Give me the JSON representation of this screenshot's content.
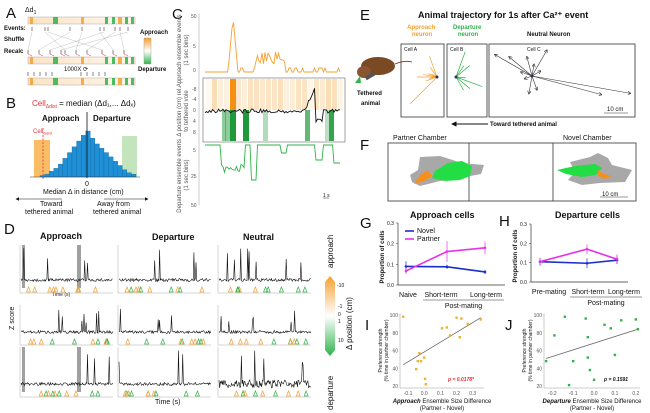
{
  "colors": {
    "approach": "#f5a030",
    "departure": "#2fb34a",
    "novel": "#1a2fcc",
    "partner": "#e632e6",
    "red": "#e8303a",
    "gray": "#a0a0a0"
  },
  "panelA": {
    "label": "A",
    "delta": "Δd",
    "delta_sub": "1",
    "events": "Events:",
    "shuffle": "Shuffle",
    "recalc": "Recalc",
    "iter": "1000X ⟳",
    "legend_top": "Approach",
    "legend_bottom": "Departure"
  },
  "panelB": {
    "label": "B",
    "formula_cell": "Cell",
    "formula_sub": "Δdist",
    "formula_rest": " = median (Δd₁,... Δdₓ)",
    "approach": "Approach",
    "departure": "Departure",
    "cell": "Cell",
    "cell_sub": "Δdist",
    "zero": "0",
    "xlabel": "Median Δ in distance (cm)",
    "toward": "Toward",
    "toward2": "tethered animal",
    "away": "Away from",
    "away2": "tethered animal"
  },
  "panelC": {
    "label": "C",
    "ylab_top": "Approach ensemble events (1 sec bins)",
    "ylab_mid": "Δ position (cm) rel. to tethered vole",
    "ylab_bot": "Departure ensemble events (1 sec bins)",
    "ticks_top": [
      "50",
      "5",
      "0"
    ],
    "ticks_bot": [
      "5",
      "25",
      "50"
    ],
    "ticks_mid": [
      "-8",
      "-4",
      "0",
      "4",
      "8"
    ],
    "scale": "1 s"
  },
  "panelD": {
    "label": "D",
    "col_titles": [
      "Approach",
      "Departure",
      "Neutral"
    ],
    "ylabel": "Z score",
    "xlabel": "Time (s)",
    "xlabel_small": "Time (s)",
    "cbar_top": "approach",
    "cbar_bottom": "departure",
    "cbar_label": "Δ position (cm)",
    "cbar_ticks": [
      "-10",
      "-1",
      "0",
      "1",
      "10"
    ]
  },
  "panelE": {
    "label": "E",
    "title": "Animal trajectory for 1s after Ca²⁺ event",
    "approach_title": "Approach neuron",
    "departure_title": "Departure neuron",
    "neutral_title": "Neutral Neuron",
    "cellA": "Cell A",
    "cellB": "Cell B",
    "cellC": "Cell C",
    "scale": "10 cm",
    "arrow_label": "Toward tethered animal",
    "tethered": "Tethered",
    "animal": "animal"
  },
  "panelF": {
    "label": "F",
    "partner": "Partner Chamber",
    "novel": "Novel Chamber",
    "scale": "10 cm"
  },
  "panelG": {
    "label": "G",
    "title": "Approach cells"
  },
  "panelH": {
    "label": "H",
    "title": "Departure cells"
  },
  "panelI": {
    "label": "I",
    "p": "p = 0.0178*"
  },
  "panelJ": {
    "label": "J",
    "p": "p = 0.1591"
  },
  "chart_data": [
    {
      "id": "B",
      "type": "bar",
      "title": "Histogram of median Δ in distance",
      "xlabel": "Median Δ in distance (cm)",
      "values": [
        1,
        2,
        4,
        6,
        9,
        13,
        17,
        21,
        25,
        29,
        32,
        27,
        23,
        20,
        17,
        14,
        11,
        8,
        5,
        3,
        2
      ]
    },
    {
      "id": "G",
      "type": "line",
      "title": "Approach cells",
      "ylabel": "Proportion of cells",
      "categories": [
        "Naive",
        "Short-term",
        "Long-term"
      ],
      "group_label": "Post-mating",
      "ylim": [
        0,
        0.3
      ],
      "yticks": [
        "0.0",
        "0.1",
        "0.2",
        "0.3"
      ],
      "series": [
        {
          "name": "Novel",
          "values": [
            0.09,
            0.088,
            0.063
          ],
          "err": [
            0.025,
            0.01,
            0.01
          ]
        },
        {
          "name": "Partner",
          "values": [
            0.068,
            0.162,
            0.18
          ],
          "err": [
            0.015,
            0.05,
            0.03
          ]
        }
      ]
    },
    {
      "id": "H",
      "type": "line",
      "title": "Departure cells",
      "ylabel": "Proportion of cells",
      "categories": [
        "Pre-mating",
        "Short-term",
        "Long-term"
      ],
      "group_label": "Post-mating",
      "ylim": [
        0,
        0.3
      ],
      "yticks": [
        "0.0",
        "0.1",
        "0.2",
        "0.3"
      ],
      "series": [
        {
          "name": "Novel",
          "values": [
            0.105,
            0.097,
            0.113
          ],
          "err": [
            0.02,
            0.025,
            0.02
          ]
        },
        {
          "name": "Partner",
          "values": [
            0.105,
            0.17,
            0.118
          ],
          "err": [
            0.02,
            0.025,
            0.025
          ]
        }
      ]
    },
    {
      "id": "I",
      "type": "scatter",
      "ylabel": "Preference strength (% time in partner chamber)",
      "xlabel_bold": "Approach",
      "xlabel": " Ensemble Size Difference",
      "xlabel2": "(Partner - Novel)",
      "xlim": [
        -0.15,
        0.37
      ],
      "ylim": [
        20,
        100
      ],
      "xticks": [
        "-0.1",
        "0.0",
        "0.1",
        "0.2",
        "0.3"
      ],
      "yticks": [
        "20",
        "40",
        "60",
        "80",
        "100"
      ],
      "points": [
        [
          -0.13,
          98
        ],
        [
          -0.05,
          39
        ],
        [
          -0.04,
          48
        ],
        [
          -0.03,
          57
        ],
        [
          -0.02,
          48
        ],
        [
          0.0,
          52
        ],
        [
          0.005,
          28
        ],
        [
          0.01,
          22
        ],
        [
          0.11,
          85
        ],
        [
          0.14,
          86
        ],
        [
          0.16,
          77
        ],
        [
          0.2,
          97
        ],
        [
          0.22,
          75
        ],
        [
          0.23,
          96
        ],
        [
          0.27,
          90
        ],
        [
          0.35,
          95
        ]
      ],
      "fit": [
        [
          -0.13,
          44
        ],
        [
          0.35,
          97
        ]
      ]
    },
    {
      "id": "J",
      "type": "scatter",
      "ylabel": "Preference strength (% time in partner chamber)",
      "xlabel_bold": "Departure",
      "xlabel": " Ensemble Size Difference",
      "xlabel2": "(Partner - Novel)",
      "xlim": [
        -0.24,
        0.22
      ],
      "ylim": [
        20,
        100
      ],
      "xticks": [
        "-0.2",
        "-0.1",
        "0.0",
        "0.1",
        "0.2"
      ],
      "yticks": [
        "20",
        "40",
        "60",
        "80",
        "100"
      ],
      "points": [
        [
          -0.23,
          48
        ],
        [
          -0.19,
          77
        ],
        [
          -0.14,
          98
        ],
        [
          -0.12,
          21
        ],
        [
          -0.1,
          48
        ],
        [
          -0.04,
          96
        ],
        [
          -0.03,
          75
        ],
        [
          -0.03,
          52
        ],
        [
          -0.02,
          38
        ],
        [
          0.0,
          27
        ],
        [
          0.05,
          89
        ],
        [
          0.08,
          85
        ],
        [
          0.1,
          55
        ],
        [
          0.13,
          94
        ],
        [
          0.2,
          95
        ],
        [
          0.21,
          84
        ]
      ],
      "fit": [
        [
          -0.23,
          51
        ],
        [
          0.21,
          84
        ]
      ]
    }
  ]
}
